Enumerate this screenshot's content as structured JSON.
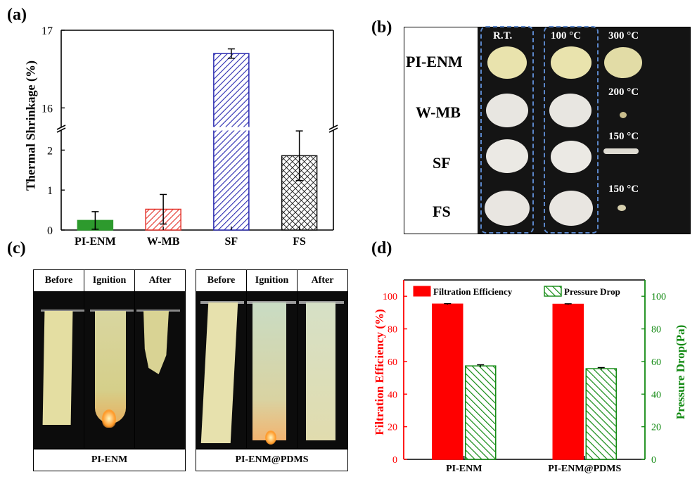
{
  "panels": {
    "a": "(a)",
    "b": "(b)",
    "c": "(c)",
    "d": "(d)"
  },
  "panel_b": {
    "rows": [
      "PI-ENM",
      "W-MB",
      "SF",
      "FS"
    ],
    "col_headers": [
      "R.T.",
      "100 °C"
    ],
    "third_col_temps": [
      "300 °C",
      "200 °C",
      "150 °C",
      "150 °C"
    ],
    "colors": {
      "pi": "#e9e3ad",
      "white": "#e6e4de",
      "background": "#141414",
      "dash": "#5b86c9"
    }
  },
  "panel_c": {
    "left": {
      "headers": [
        "Before",
        "Ignition",
        "After"
      ],
      "caption": "PI-ENM"
    },
    "right": {
      "headers": [
        "Before",
        "Ignition",
        "After"
      ],
      "caption": "PI-ENM@PDMS"
    }
  },
  "chart_data": [
    {
      "type": "bar",
      "panel": "a",
      "categories": [
        "PI-ENM",
        "W-MB",
        "SF",
        "FS"
      ],
      "values": [
        0.24,
        0.52,
        16.7,
        1.86
      ],
      "errors": [
        0.22,
        0.37,
        0.06,
        0.62
      ],
      "ylabel": "Thermal Shrinkage (%)",
      "broken_axis": {
        "lower_range": [
          0,
          2.5
        ],
        "upper_range": [
          15.75,
          17
        ],
        "break_between": [
          2.5,
          15.75
        ]
      },
      "lower_ticks": [
        "0",
        "1",
        "2"
      ],
      "upper_ticks": [
        "16",
        "17"
      ],
      "bar_styles": [
        {
          "fill": "#2d9a2d",
          "pattern": "solid"
        },
        {
          "fill": "#e4352d",
          "pattern": "diagonal"
        },
        {
          "fill": "#2a2ab0",
          "pattern": "diagonal"
        },
        {
          "fill": "#111111",
          "pattern": "crosshatch"
        }
      ]
    },
    {
      "type": "bar",
      "panel": "d",
      "categories": [
        "PI-ENM",
        "PI-ENM@PDMS"
      ],
      "series": [
        {
          "name": "Filtration Efficiency",
          "values": [
            95.2,
            95.1
          ],
          "errors": [
            0.3,
            0.3
          ],
          "color": "#ff0000",
          "axis": "left"
        },
        {
          "name": "Pressure Drop",
          "values": [
            57.3,
            55.6
          ],
          "errors": [
            0.7,
            0.7
          ],
          "color": "#138a13",
          "axis": "right"
        }
      ],
      "ylabel_left": "Filtration Efficiency (%)",
      "ylabel_right": "Pressure Drop(Pa)",
      "ylim_left": [
        0,
        110
      ],
      "ylim_right": [
        0,
        110
      ],
      "ticks": [
        "0",
        "20",
        "40",
        "60",
        "80",
        "100"
      ]
    }
  ]
}
